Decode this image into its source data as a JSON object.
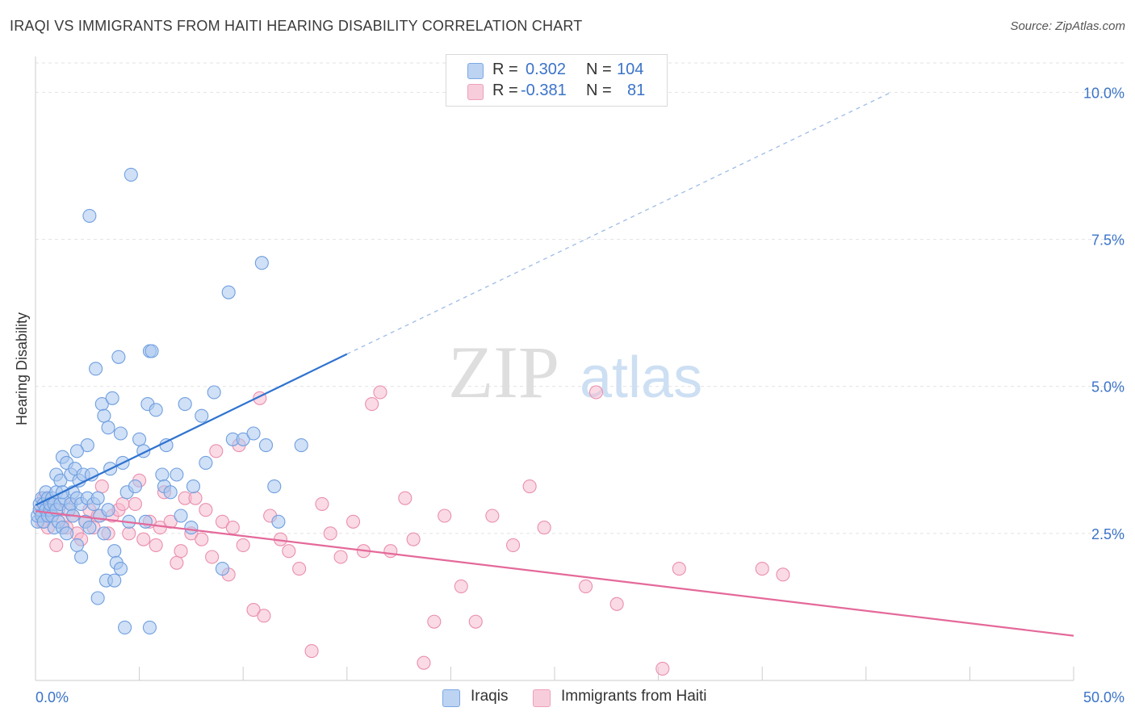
{
  "title": "IRAQI VS IMMIGRANTS FROM HAITI HEARING DISABILITY CORRELATION CHART",
  "source": "Source: ZipAtlas.com",
  "watermark": {
    "zip": "ZIP",
    "atlas": "atlas"
  },
  "legend": {
    "row1": {
      "r_label": "R =",
      "r_value": "0.302",
      "n_label": "N =",
      "n_value": "104"
    },
    "row2": {
      "r_label": "R =",
      "r_value": "-0.381",
      "n_label": "N =",
      "n_value": "81"
    }
  },
  "colors": {
    "iraqi_fill": "#a9c7ef",
    "iraqi_stroke": "#6f9fe0",
    "iraqi_line": "#2f73d0",
    "haiti_fill": "#f5bccf",
    "haiti_stroke": "#ea8fae",
    "haiti_line": "#e4699a",
    "axis_label": "#3b73c9",
    "grid": "#e2e2e2"
  },
  "chart_data": {
    "type": "scatter",
    "title": "IRAQI VS IMMIGRANTS FROM HAITI HEARING DISABILITY CORRELATION CHART",
    "xlabel": "",
    "ylabel": "Hearing Disability",
    "xlim": [
      0,
      50
    ],
    "ylim": [
      0,
      10.5
    ],
    "x_tick_labels": [
      "0.0%",
      "50.0%"
    ],
    "y_ticks": [
      2.5,
      5.0,
      7.5,
      10.0
    ],
    "y_tick_labels": [
      "2.5%",
      "5.0%",
      "7.5%",
      "10.0%"
    ],
    "grid": true,
    "legend_position": "top-center",
    "series": [
      {
        "name": "Iraqis",
        "color": "#a9c7ef",
        "trend": {
          "x_solid": [
            0,
            15
          ],
          "y_solid": [
            2.98,
            5.55
          ],
          "x_dash_end": 41.2,
          "y_dash_end": 10.0
        },
        "points": [
          [
            0.1,
            2.7
          ],
          [
            0.1,
            2.8
          ],
          [
            0.2,
            2.9
          ],
          [
            0.2,
            3.0
          ],
          [
            0.3,
            3.1
          ],
          [
            0.3,
            2.8
          ],
          [
            0.4,
            3.0
          ],
          [
            0.4,
            2.7
          ],
          [
            0.5,
            2.9
          ],
          [
            0.5,
            3.2
          ],
          [
            0.6,
            3.1
          ],
          [
            0.6,
            2.8
          ],
          [
            0.7,
            2.9
          ],
          [
            0.7,
            3.0
          ],
          [
            0.8,
            2.8
          ],
          [
            0.8,
            3.1
          ],
          [
            0.9,
            3.0
          ],
          [
            0.9,
            2.6
          ],
          [
            1.0,
            2.9
          ],
          [
            1.0,
            3.2
          ],
          [
            1.0,
            3.5
          ],
          [
            1.1,
            2.7
          ],
          [
            1.2,
            3.0
          ],
          [
            1.2,
            3.4
          ],
          [
            1.3,
            2.6
          ],
          [
            1.3,
            3.8
          ],
          [
            1.4,
            3.1
          ],
          [
            1.5,
            2.5
          ],
          [
            1.5,
            3.7
          ],
          [
            1.6,
            2.9
          ],
          [
            1.7,
            3.0
          ],
          [
            1.7,
            3.5
          ],
          [
            1.8,
            3.2
          ],
          [
            1.8,
            2.8
          ],
          [
            1.9,
            3.6
          ],
          [
            2.0,
            3.1
          ],
          [
            2.0,
            2.3
          ],
          [
            2.1,
            3.4
          ],
          [
            2.2,
            3.0
          ],
          [
            2.2,
            2.1
          ],
          [
            2.3,
            3.5
          ],
          [
            2.4,
            2.7
          ],
          [
            2.5,
            3.1
          ],
          [
            2.5,
            4.0
          ],
          [
            2.6,
            2.6
          ],
          [
            2.7,
            3.5
          ],
          [
            2.8,
            3.0
          ],
          [
            2.9,
            5.3
          ],
          [
            3.0,
            3.1
          ],
          [
            3.0,
            1.4
          ],
          [
            3.1,
            2.8
          ],
          [
            3.2,
            4.7
          ],
          [
            3.3,
            2.5
          ],
          [
            3.3,
            4.5
          ],
          [
            3.4,
            1.7
          ],
          [
            3.5,
            2.9
          ],
          [
            3.5,
            4.3
          ],
          [
            3.6,
            3.6
          ],
          [
            3.7,
            4.8
          ],
          [
            3.8,
            1.7
          ],
          [
            3.8,
            2.2
          ],
          [
            3.9,
            2.0
          ],
          [
            4.0,
            5.5
          ],
          [
            4.1,
            4.2
          ],
          [
            4.1,
            1.9
          ],
          [
            4.2,
            3.7
          ],
          [
            4.3,
            0.9
          ],
          [
            4.4,
            3.2
          ],
          [
            4.5,
            2.7
          ],
          [
            4.6,
            8.6
          ],
          [
            4.8,
            3.3
          ],
          [
            5.0,
            4.1
          ],
          [
            5.2,
            3.9
          ],
          [
            5.3,
            2.7
          ],
          [
            5.4,
            4.7
          ],
          [
            5.5,
            0.9
          ],
          [
            5.5,
            5.6
          ],
          [
            5.6,
            5.6
          ],
          [
            5.8,
            4.6
          ],
          [
            6.1,
            3.5
          ],
          [
            6.2,
            3.3
          ],
          [
            6.3,
            4.0
          ],
          [
            6.5,
            3.2
          ],
          [
            6.8,
            3.5
          ],
          [
            7.0,
            2.8
          ],
          [
            7.2,
            4.7
          ],
          [
            7.5,
            2.6
          ],
          [
            7.6,
            3.3
          ],
          [
            8.0,
            4.5
          ],
          [
            8.2,
            3.7
          ],
          [
            8.6,
            4.9
          ],
          [
            9.0,
            1.9
          ],
          [
            9.3,
            6.6
          ],
          [
            9.5,
            4.1
          ],
          [
            10.0,
            4.1
          ],
          [
            10.5,
            4.2
          ],
          [
            10.9,
            7.1
          ],
          [
            11.1,
            4.0
          ],
          [
            11.5,
            3.3
          ],
          [
            11.7,
            2.7
          ],
          [
            2.6,
            7.9
          ],
          [
            1.3,
            3.2
          ],
          [
            2.0,
            3.9
          ],
          [
            12.8,
            4.0
          ]
        ]
      },
      {
        "name": "Immigrants from Haiti",
        "color": "#f5bccf",
        "trend": {
          "x_solid": [
            0,
            50
          ],
          "y_solid": [
            2.88,
            0.76
          ]
        },
        "points": [
          [
            0.2,
            2.9
          ],
          [
            0.3,
            2.7
          ],
          [
            0.4,
            3.1
          ],
          [
            0.5,
            2.8
          ],
          [
            0.6,
            2.6
          ],
          [
            0.7,
            3.0
          ],
          [
            0.8,
            2.8
          ],
          [
            1.0,
            2.3
          ],
          [
            1.1,
            2.9
          ],
          [
            1.3,
            2.7
          ],
          [
            1.5,
            2.6
          ],
          [
            1.7,
            3.0
          ],
          [
            1.8,
            2.8
          ],
          [
            2.0,
            2.5
          ],
          [
            2.2,
            2.4
          ],
          [
            2.4,
            2.7
          ],
          [
            2.6,
            2.9
          ],
          [
            2.8,
            2.6
          ],
          [
            3.0,
            2.8
          ],
          [
            3.2,
            3.3
          ],
          [
            3.5,
            2.5
          ],
          [
            3.7,
            2.8
          ],
          [
            4.0,
            2.9
          ],
          [
            4.2,
            3.0
          ],
          [
            4.5,
            2.5
          ],
          [
            4.8,
            3.0
          ],
          [
            5.0,
            3.4
          ],
          [
            5.2,
            2.4
          ],
          [
            5.5,
            2.7
          ],
          [
            5.8,
            2.3
          ],
          [
            6.0,
            2.6
          ],
          [
            6.2,
            3.2
          ],
          [
            6.5,
            2.7
          ],
          [
            6.8,
            2.0
          ],
          [
            7.0,
            2.2
          ],
          [
            7.2,
            3.1
          ],
          [
            7.5,
            2.5
          ],
          [
            7.7,
            3.1
          ],
          [
            8.0,
            2.4
          ],
          [
            8.2,
            2.9
          ],
          [
            8.5,
            2.1
          ],
          [
            8.7,
            3.9
          ],
          [
            9.0,
            2.7
          ],
          [
            9.3,
            1.8
          ],
          [
            9.5,
            2.6
          ],
          [
            9.8,
            4.0
          ],
          [
            10.0,
            2.3
          ],
          [
            10.5,
            1.2
          ],
          [
            10.8,
            4.8
          ],
          [
            11.0,
            1.1
          ],
          [
            11.3,
            2.8
          ],
          [
            11.8,
            2.4
          ],
          [
            12.2,
            2.2
          ],
          [
            12.7,
            1.9
          ],
          [
            13.3,
            0.5
          ],
          [
            13.8,
            3.0
          ],
          [
            14.2,
            2.5
          ],
          [
            14.7,
            2.1
          ],
          [
            15.3,
            2.7
          ],
          [
            15.8,
            2.2
          ],
          [
            16.2,
            4.7
          ],
          [
            16.6,
            4.9
          ],
          [
            17.1,
            2.2
          ],
          [
            17.8,
            3.1
          ],
          [
            18.2,
            2.4
          ],
          [
            18.7,
            0.3
          ],
          [
            19.2,
            1.0
          ],
          [
            19.7,
            2.8
          ],
          [
            20.5,
            1.6
          ],
          [
            21.2,
            1.0
          ],
          [
            22.0,
            2.8
          ],
          [
            23.0,
            2.3
          ],
          [
            23.8,
            3.3
          ],
          [
            24.5,
            2.6
          ],
          [
            26.5,
            1.6
          ],
          [
            27.0,
            4.9
          ],
          [
            28.0,
            1.3
          ],
          [
            31.0,
            1.9
          ],
          [
            30.2,
            0.2
          ],
          [
            35.0,
            1.9
          ],
          [
            36.0,
            1.8
          ]
        ]
      }
    ]
  },
  "bottom_legend": {
    "iraqis": "Iraqis",
    "haiti": "Immigrants from Haiti"
  }
}
